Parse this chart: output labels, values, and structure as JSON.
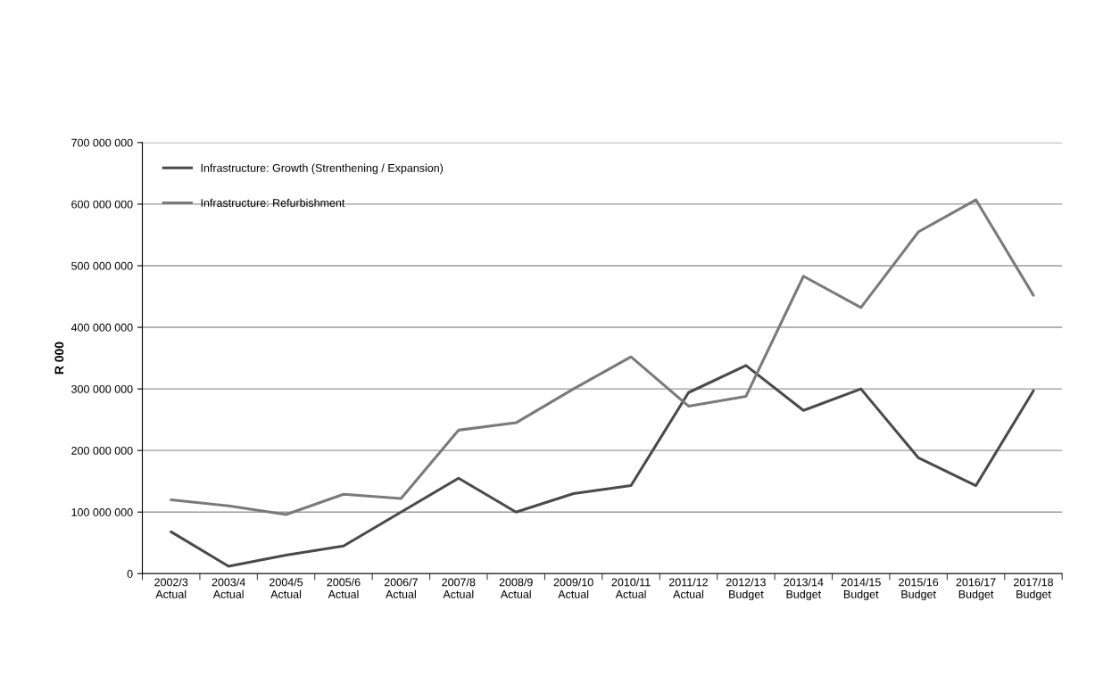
{
  "chart_data": {
    "type": "line",
    "ylabel": "R 000",
    "categories": [
      "2002/3\nActual",
      "2003/4\nActual",
      "2004/5\nActual",
      "2005/6\nActual",
      "2006/7\nActual",
      "2007/8\nActual",
      "2008/9\nActual",
      "2009/10\nActual",
      "2010/11\nActual",
      "2011/12\nActual",
      "2012/13\nBudget",
      "2013/14\nBudget",
      "2014/15\nBudget",
      "2015/16\nBudget",
      "2016/17\nBudget",
      "2017/18\nBudget"
    ],
    "series": [
      {
        "name": "Infrastructure: Growth (Strenthening / Expansion)",
        "color": "#4a4a4a",
        "values": [
          68000000,
          12000000,
          30000000,
          45000000,
          100000000,
          155000000,
          100000000,
          130000000,
          143000000,
          294000000,
          338000000,
          265000000,
          300000000,
          188000000,
          143000000,
          297000000
        ]
      },
      {
        "name": "Infrastructure: Refurbishment",
        "color": "#7a7a7a",
        "values": [
          120000000,
          110000000,
          96000000,
          129000000,
          122000000,
          233000000,
          245000000,
          300000000,
          352000000,
          272000000,
          288000000,
          483000000,
          432000000,
          555000000,
          607000000,
          452000000
        ]
      }
    ],
    "ylim": [
      0,
      700000000
    ],
    "yticks": [
      {
        "value": 0,
        "label": "0"
      },
      {
        "value": 100000000,
        "label": "100 000 000"
      },
      {
        "value": 200000000,
        "label": "200 000 000"
      },
      {
        "value": 300000000,
        "label": "300 000 000"
      },
      {
        "value": 400000000,
        "label": "400 000 000"
      },
      {
        "value": 500000000,
        "label": "500 000 000"
      },
      {
        "value": 600000000,
        "label": "600 000 000"
      },
      {
        "value": 700000000,
        "label": "700 000 000"
      }
    ],
    "grid": "y",
    "legend": "top left",
    "marker": "none",
    "line_style": "solid"
  }
}
